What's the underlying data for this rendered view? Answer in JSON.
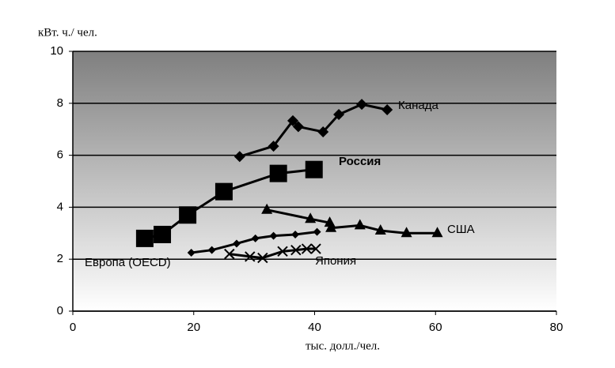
{
  "chart_data": {
    "type": "line",
    "y_label": "кВт. ч./ чел.",
    "x_label": "тыс. долл./чел.",
    "xlim": [
      0,
      80
    ],
    "xticks": [
      0,
      20,
      40,
      60,
      80
    ],
    "ylim": [
      0,
      10
    ],
    "yticks": [
      0,
      2,
      4,
      6,
      8,
      10
    ],
    "grid": true,
    "series": [
      {
        "name": "Канада",
        "color": "#000000",
        "marker": "diamond",
        "x": [
          27.6,
          33.2,
          36.4,
          37.3,
          41.4,
          44.0,
          47.8,
          52.0
        ],
        "values": [
          5.95,
          6.35,
          7.33,
          7.1,
          6.9,
          7.57,
          7.96,
          7.75
        ]
      },
      {
        "name": "Россия",
        "color": "#000000",
        "marker": "square",
        "x": [
          11.9,
          14.8,
          19.0,
          25.0,
          34.0,
          39.9
        ],
        "values": [
          2.8,
          2.95,
          3.7,
          4.6,
          5.3,
          5.45
        ]
      },
      {
        "name": "США",
        "color": "#000000",
        "marker": "triangle",
        "x": [
          32.1,
          39.3,
          42.5,
          42.7,
          47.5,
          50.9,
          55.2,
          60.3
        ],
        "values": [
          3.9,
          3.55,
          3.4,
          3.2,
          3.3,
          3.1,
          3.0,
          3.0
        ]
      },
      {
        "name": "Европа (OECD)",
        "color": "#000000",
        "marker": "smalldiamond",
        "x": [
          19.6,
          23.0,
          27.1,
          30.2,
          33.2,
          36.8,
          40.4
        ],
        "values": [
          2.25,
          2.35,
          2.6,
          2.8,
          2.9,
          2.95,
          3.05
        ]
      },
      {
        "name": "Япония",
        "color": "#000000",
        "marker": "x",
        "x": [
          25.9,
          29.3,
          31.4,
          34.7,
          36.9,
          38.7,
          40.2
        ],
        "values": [
          2.2,
          2.1,
          2.05,
          2.3,
          2.35,
          2.4,
          2.4
        ]
      }
    ]
  }
}
